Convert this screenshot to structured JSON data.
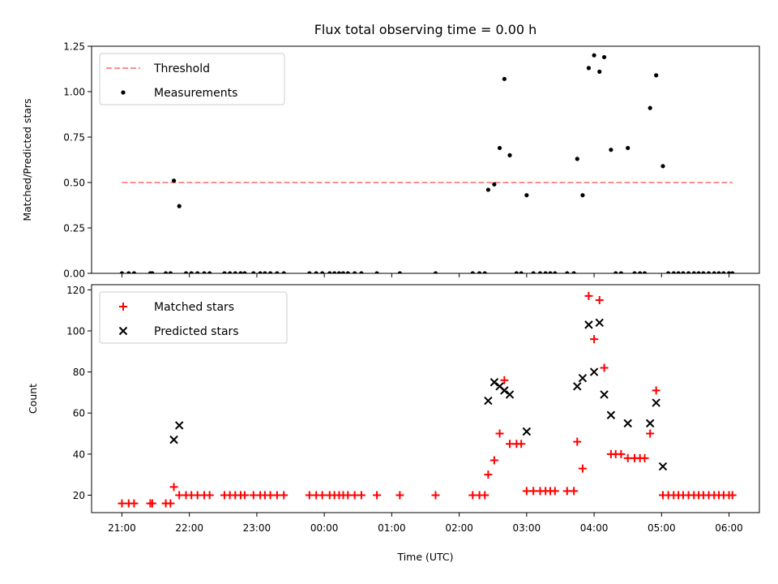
{
  "chart_data": {
    "title": "Flux total observing time = 0.00 h",
    "xlabel": "Time (UTC)",
    "x_tick_labels": [
      "21:00",
      "22:00",
      "23:00",
      "00:00",
      "01:00",
      "02:00",
      "03:00",
      "04:00",
      "05:00",
      "06:00"
    ],
    "x_range_hours": [
      -0.45,
      9.45
    ],
    "panels": [
      {
        "type": "scatter",
        "ylabel": "Matched/Predicted stars",
        "ylim": [
          0,
          1.25
        ],
        "y_ticks": [
          "0.00",
          "0.25",
          "0.50",
          "0.75",
          "1.00",
          "1.25"
        ],
        "legend": {
          "placement": "top-left",
          "entries": [
            "Threshold",
            "Measurements"
          ]
        },
        "threshold": {
          "name": "Threshold",
          "value": 0.5,
          "x_start": 0.0,
          "x_end": 9.05,
          "color": "#ff7f7f",
          "style": "dashed"
        },
        "series": [
          {
            "name": "Measurements",
            "marker": "dot",
            "color": "#000000",
            "points": [
              [
                0.0,
                0
              ],
              [
                0.1,
                0
              ],
              [
                0.18,
                0
              ],
              [
                0.42,
                0
              ],
              [
                0.45,
                0
              ],
              [
                0.65,
                0
              ],
              [
                0.72,
                0
              ],
              [
                0.77,
                0.51
              ],
              [
                0.85,
                0.37
              ],
              [
                0.95,
                0
              ],
              [
                1.03,
                0
              ],
              [
                1.12,
                0
              ],
              [
                1.22,
                0
              ],
              [
                1.3,
                0
              ],
              [
                1.52,
                0
              ],
              [
                1.6,
                0
              ],
              [
                1.68,
                0
              ],
              [
                1.76,
                0
              ],
              [
                1.82,
                0
              ],
              [
                1.95,
                0
              ],
              [
                2.05,
                0
              ],
              [
                2.12,
                0
              ],
              [
                2.2,
                0
              ],
              [
                2.3,
                0
              ],
              [
                2.4,
                0
              ],
              [
                2.78,
                0
              ],
              [
                2.88,
                0
              ],
              [
                2.97,
                0
              ],
              [
                3.08,
                0
              ],
              [
                3.15,
                0
              ],
              [
                3.22,
                0
              ],
              [
                3.28,
                0
              ],
              [
                3.35,
                0
              ],
              [
                3.45,
                0
              ],
              [
                3.55,
                0
              ],
              [
                3.78,
                0
              ],
              [
                4.12,
                0
              ],
              [
                4.65,
                0
              ],
              [
                5.2,
                0
              ],
              [
                5.3,
                0
              ],
              [
                5.38,
                0
              ],
              [
                5.43,
                0.46
              ],
              [
                5.52,
                0.49
              ],
              [
                5.6,
                0.69
              ],
              [
                5.67,
                1.07
              ],
              [
                5.75,
                0.65
              ],
              [
                5.85,
                0
              ],
              [
                5.92,
                0
              ],
              [
                6.0,
                0.43
              ],
              [
                6.1,
                0
              ],
              [
                6.2,
                0
              ],
              [
                6.28,
                0
              ],
              [
                6.35,
                0
              ],
              [
                6.42,
                0
              ],
              [
                6.6,
                0
              ],
              [
                6.7,
                0
              ],
              [
                6.75,
                0.63
              ],
              [
                6.83,
                0.43
              ],
              [
                6.92,
                1.13
              ],
              [
                7.0,
                1.2
              ],
              [
                7.08,
                1.11
              ],
              [
                7.15,
                1.19
              ],
              [
                7.25,
                0.68
              ],
              [
                7.32,
                0
              ],
              [
                7.4,
                0
              ],
              [
                7.5,
                0.69
              ],
              [
                7.6,
                0
              ],
              [
                7.68,
                0
              ],
              [
                7.75,
                0
              ],
              [
                7.83,
                0.91
              ],
              [
                7.92,
                1.09
              ],
              [
                8.02,
                0.59
              ],
              [
                8.1,
                0
              ],
              [
                8.18,
                0
              ],
              [
                8.25,
                0
              ],
              [
                8.32,
                0
              ],
              [
                8.4,
                0
              ],
              [
                8.48,
                0
              ],
              [
                8.55,
                0
              ],
              [
                8.62,
                0
              ],
              [
                8.7,
                0
              ],
              [
                8.78,
                0
              ],
              [
                8.85,
                0
              ],
              [
                8.92,
                0
              ],
              [
                9.0,
                0
              ],
              [
                9.05,
                0
              ]
            ]
          }
        ]
      },
      {
        "type": "scatter",
        "ylabel": "Count",
        "ylim": [
          11.5,
          122.5
        ],
        "y_ticks": [
          "20",
          "40",
          "60",
          "80",
          "100",
          "120"
        ],
        "legend": {
          "placement": "top-left",
          "entries": [
            "Matched stars",
            "Predicted stars"
          ]
        },
        "series": [
          {
            "name": "Matched stars",
            "marker": "plus",
            "color": "#ff0000",
            "points": [
              [
                0.0,
                16
              ],
              [
                0.1,
                16
              ],
              [
                0.18,
                16
              ],
              [
                0.42,
                16
              ],
              [
                0.45,
                16
              ],
              [
                0.65,
                16
              ],
              [
                0.72,
                16
              ],
              [
                0.77,
                24
              ],
              [
                0.85,
                20
              ],
              [
                0.95,
                20
              ],
              [
                1.03,
                20
              ],
              [
                1.12,
                20
              ],
              [
                1.22,
                20
              ],
              [
                1.3,
                20
              ],
              [
                1.52,
                20
              ],
              [
                1.6,
                20
              ],
              [
                1.68,
                20
              ],
              [
                1.76,
                20
              ],
              [
                1.82,
                20
              ],
              [
                1.95,
                20
              ],
              [
                2.05,
                20
              ],
              [
                2.12,
                20
              ],
              [
                2.2,
                20
              ],
              [
                2.3,
                20
              ],
              [
                2.4,
                20
              ],
              [
                2.78,
                20
              ],
              [
                2.88,
                20
              ],
              [
                2.97,
                20
              ],
              [
                3.08,
                20
              ],
              [
                3.15,
                20
              ],
              [
                3.22,
                20
              ],
              [
                3.28,
                20
              ],
              [
                3.35,
                20
              ],
              [
                3.45,
                20
              ],
              [
                3.55,
                20
              ],
              [
                3.78,
                20
              ],
              [
                4.12,
                20
              ],
              [
                4.65,
                20
              ],
              [
                5.2,
                20
              ],
              [
                5.3,
                20
              ],
              [
                5.38,
                20
              ],
              [
                5.43,
                30
              ],
              [
                5.52,
                37
              ],
              [
                5.6,
                50
              ],
              [
                5.67,
                76
              ],
              [
                5.75,
                45
              ],
              [
                5.85,
                45
              ],
              [
                5.92,
                45
              ],
              [
                6.0,
                22
              ],
              [
                6.1,
                22
              ],
              [
                6.2,
                22
              ],
              [
                6.28,
                22
              ],
              [
                6.35,
                22
              ],
              [
                6.42,
                22
              ],
              [
                6.6,
                22
              ],
              [
                6.7,
                22
              ],
              [
                6.75,
                46
              ],
              [
                6.83,
                33
              ],
              [
                6.92,
                117
              ],
              [
                7.0,
                96
              ],
              [
                7.08,
                115
              ],
              [
                7.15,
                82
              ],
              [
                7.25,
                40
              ],
              [
                7.32,
                40
              ],
              [
                7.4,
                40
              ],
              [
                7.5,
                38
              ],
              [
                7.6,
                38
              ],
              [
                7.68,
                38
              ],
              [
                7.75,
                38
              ],
              [
                7.83,
                50
              ],
              [
                7.92,
                71
              ],
              [
                8.02,
                20
              ],
              [
                8.1,
                20
              ],
              [
                8.18,
                20
              ],
              [
                8.25,
                20
              ],
              [
                8.32,
                20
              ],
              [
                8.4,
                20
              ],
              [
                8.48,
                20
              ],
              [
                8.55,
                20
              ],
              [
                8.62,
                20
              ],
              [
                8.7,
                20
              ],
              [
                8.78,
                20
              ],
              [
                8.85,
                20
              ],
              [
                8.92,
                20
              ],
              [
                9.0,
                20
              ],
              [
                9.05,
                20
              ]
            ]
          },
          {
            "name": "Predicted stars",
            "marker": "x",
            "color": "#000000",
            "points": [
              [
                0.77,
                47
              ],
              [
                0.85,
                54
              ],
              [
                5.43,
                66
              ],
              [
                5.52,
                75
              ],
              [
                5.6,
                73
              ],
              [
                5.67,
                71
              ],
              [
                5.75,
                69
              ],
              [
                6.0,
                51
              ],
              [
                6.75,
                73
              ],
              [
                6.83,
                77
              ],
              [
                6.92,
                103
              ],
              [
                7.0,
                80
              ],
              [
                7.08,
                104
              ],
              [
                7.15,
                69
              ],
              [
                7.25,
                59
              ],
              [
                7.5,
                55
              ],
              [
                7.83,
                55
              ],
              [
                7.92,
                65
              ],
              [
                8.02,
                34
              ]
            ]
          }
        ]
      }
    ]
  }
}
